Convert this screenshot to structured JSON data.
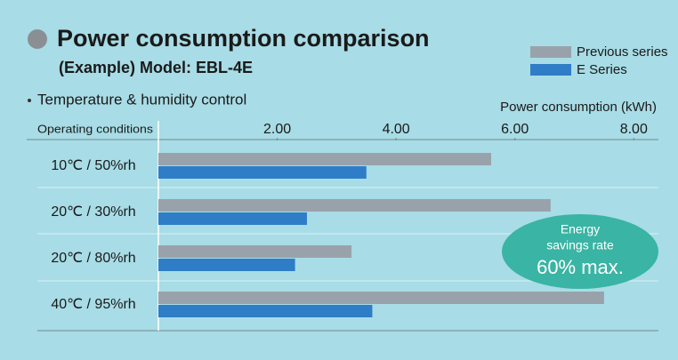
{
  "chart_data": {
    "type": "bar",
    "orientation": "horizontal",
    "title": "Power consumption comparison",
    "subtitle": "(Example) Model: EBL-4E",
    "section_label": "Temperature & humidity control",
    "x_label": "Power consumption (kWh)",
    "y_label": "Operating conditions",
    "categories": [
      "10℃ / 50%rh",
      "20℃ / 30%rh",
      "20℃ / 80%rh",
      "40℃ / 95%rh"
    ],
    "series": [
      {
        "name": "Previous series",
        "color": "#99a2aa",
        "values": [
          5.6,
          6.6,
          3.25,
          7.5
        ]
      },
      {
        "name": "E Series",
        "color": "#2e7dc6",
        "values": [
          3.5,
          2.5,
          2.3,
          3.6
        ]
      }
    ],
    "xlim": [
      0,
      8.4
    ],
    "xticks": [
      {
        "value": 2,
        "label": "2.00"
      },
      {
        "value": 4,
        "label": "4.00"
      },
      {
        "value": 6,
        "label": "6.00"
      },
      {
        "value": 8,
        "label": "8.00"
      }
    ],
    "annotation": [
      "Energy",
      "savings rate",
      "60% max."
    ],
    "annotation_color": "#3ab4a4"
  }
}
